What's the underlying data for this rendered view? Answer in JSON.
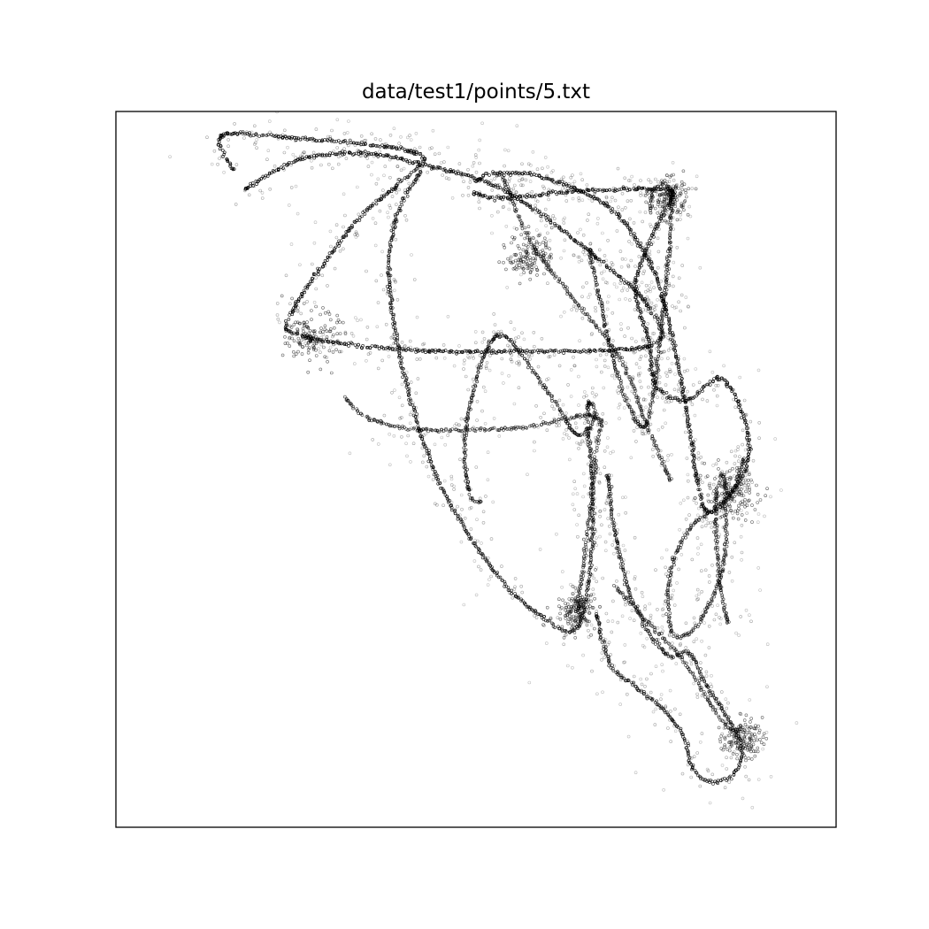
{
  "chart_data": {
    "type": "scatter",
    "title": "data/test1/points/5.txt",
    "xlabel": "",
    "ylabel": "",
    "xlim": [
      0,
      1
    ],
    "ylim": [
      0,
      1
    ],
    "axis_ticks": false,
    "grid": false,
    "marker_color": "#000000",
    "marker": "open-circle",
    "series": [
      {
        "values": [
          [
            0.163,
            0.918,
            0.145,
            0.965,
            0.224,
            0.965,
            0.418,
            0.942,
            0.392,
            0.899,
            0.329,
            0.841,
            0.243,
            0.718,
            0.258,
            0.687,
            0.4,
            0.667,
            0.56,
            0.665,
            0.743,
            0.673,
            0.741,
            0.725,
            0.672,
            0.792,
            0.541,
            0.889,
            0.431,
            0.924,
            0.345,
            0.942,
            0.252,
            0.932,
            0.18,
            0.892
          ],
          [
            0.423,
            0.915,
            0.393,
            0.863,
            0.379,
            0.778,
            0.4,
            0.633,
            0.45,
            0.48,
            0.528,
            0.354,
            0.595,
            0.292,
            0.641,
            0.281,
            0.662,
            0.405,
            0.656,
            0.56,
            0.657,
            0.593,
            0.666,
            0.574,
            0.64,
            0.548,
            0.602,
            0.605,
            0.53,
            0.687,
            0.487,
            0.566,
            0.49,
            0.469,
            0.507,
            0.455
          ],
          [
            0.501,
            0.903,
            0.523,
            0.913,
            0.59,
            0.909,
            0.682,
            0.868,
            0.728,
            0.812,
            0.758,
            0.745,
            0.79,
            0.598,
            0.808,
            0.48,
            0.822,
            0.441,
            0.85,
            0.461,
            0.878,
            0.515,
            0.87,
            0.576,
            0.838,
            0.627,
            0.793,
            0.597,
            0.75,
            0.618,
            0.74,
            0.68,
            0.722,
            0.76,
            0.76,
            0.858,
            0.774,
            0.885,
            0.748,
            0.892,
            0.633,
            0.888,
            0.533,
            0.879,
            0.497,
            0.886
          ],
          [
            0.658,
            0.808,
            0.669,
            0.75,
            0.698,
            0.626,
            0.73,
            0.56,
            0.745,
            0.6,
            0.757,
            0.695,
            0.768,
            0.81,
            0.77,
            0.892,
            0.746,
            0.89,
            0.742,
            0.86
          ],
          [
            0.683,
            0.493,
            0.692,
            0.415,
            0.72,
            0.31,
            0.765,
            0.241,
            0.796,
            0.244,
            0.822,
            0.194,
            0.847,
            0.157,
            0.869,
            0.112,
            0.859,
            0.075,
            0.826,
            0.064,
            0.802,
            0.08,
            0.787,
            0.128,
            0.759,
            0.165,
            0.72,
            0.198,
            0.686,
            0.229,
            0.667,
            0.298
          ],
          [
            0.851,
            0.286,
            0.84,
            0.33,
            0.833,
            0.43,
            0.835,
            0.47,
            0.845,
            0.487,
            0.844,
            0.37,
            0.812,
            0.29,
            0.789,
            0.268,
            0.772,
            0.272,
            0.766,
            0.322,
            0.772,
            0.367,
            0.799,
            0.42,
            0.853,
            0.465,
            0.872,
            0.515
          ],
          [
            0.319,
            0.6,
            0.347,
            0.574,
            0.418,
            0.556,
            0.558,
            0.558,
            0.665,
            0.574,
            0.666,
            0.514,
            0.641,
            0.301
          ],
          [
            0.538,
            0.908,
            0.576,
            0.818,
            0.628,
            0.748,
            0.7,
            0.655,
            0.736,
            0.565,
            0.77,
            0.484
          ],
          [
            0.694,
            0.335,
            0.73,
            0.296,
            0.788,
            0.232,
            0.832,
            0.161,
            0.857,
            0.135,
            0.87,
            0.14
          ]
        ],
        "density": [
          1.0,
          0.8,
          1.0,
          0.7,
          0.8,
          0.6,
          0.5,
          0.4,
          0.4
        ]
      }
    ],
    "clusters": [
      [
        0.273,
        0.685,
        0.04
      ],
      [
        0.768,
        0.88,
        0.03
      ],
      [
        0.64,
        0.302,
        0.03
      ],
      [
        0.855,
        0.467,
        0.04
      ],
      [
        0.87,
        0.124,
        0.03
      ],
      [
        0.575,
        0.8,
        0.035
      ]
    ]
  }
}
